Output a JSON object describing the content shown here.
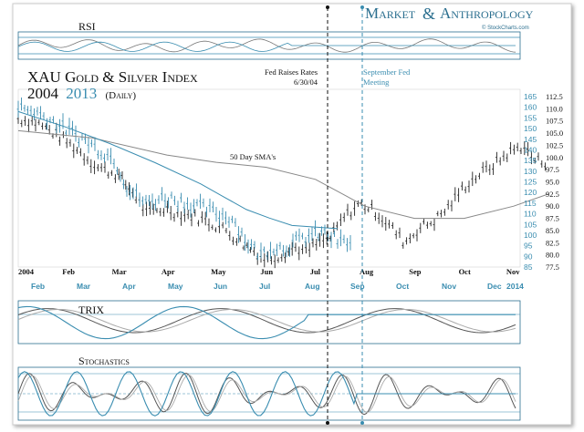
{
  "brand": {
    "part1": "Market",
    "part2": "Anthropology",
    "url": "© StockCharts.com",
    "color": "#2b6f8f"
  },
  "chart_data": {
    "type": "line",
    "title_line1": "XAU Gold & Silver Index",
    "title_year_a": "2004",
    "title_year_b": "2013",
    "title_suffix": "(Daily)",
    "colors": {
      "y2004": "#222222",
      "y2013": "#3a8db0",
      "sma": "#888888"
    },
    "panels": [
      {
        "name": "RSI",
        "type": "oscillator"
      },
      {
        "name": "TRIX",
        "type": "oscillator"
      },
      {
        "name": "Stochastics",
        "type": "oscillator"
      }
    ],
    "annotations": [
      {
        "text_line1": "Fed Raises Rates",
        "text_line2": "6/30/04",
        "color": "#111111"
      },
      {
        "text_line1": "September Fed",
        "text_line2": "Meeting",
        "color": "#3a8db0"
      },
      {
        "text_line1": "50 Day SMA's",
        "text_line2": "",
        "color": "#111111"
      }
    ],
    "x_axis_2004": [
      "2004",
      "Feb",
      "Mar",
      "Apr",
      "May",
      "Jun",
      "Jul",
      "Aug",
      "Sep",
      "Oct",
      "Nov"
    ],
    "x_axis_2013": [
      "Feb",
      "Mar",
      "Apr",
      "May",
      "Jun",
      "Jul",
      "Aug",
      "Sep",
      "Oct",
      "Nov",
      "Dec",
      "2014"
    ],
    "y_axis_2013": {
      "ticks": [
        165,
        160,
        155,
        150,
        145,
        140,
        135,
        130,
        125,
        120,
        115,
        110,
        105,
        100,
        95,
        90,
        85
      ],
      "range": [
        85,
        165
      ]
    },
    "y_axis_2004": {
      "ticks": [
        "112.5",
        "110.0",
        "107.5",
        "105.0",
        "102.5",
        "100.0",
        "97.5",
        "95.0",
        "92.5",
        "90.0",
        "87.5",
        "85.0",
        "82.5",
        "80.0",
        "77.5"
      ],
      "range": [
        77.5,
        112.5
      ]
    },
    "series": [
      {
        "name": "2004",
        "axis": "right_outer",
        "points": [
          [
            0,
            108
          ],
          [
            0.4,
            107
          ],
          [
            0.8,
            104.5
          ],
          [
            1.2,
            101.5
          ],
          [
            1.6,
            98
          ],
          [
            2.0,
            96.5
          ],
          [
            2.3,
            93
          ],
          [
            2.6,
            88.5
          ],
          [
            3.0,
            89.5
          ],
          [
            3.2,
            88.5
          ],
          [
            3.5,
            88
          ],
          [
            3.8,
            87
          ],
          [
            4.2,
            85
          ],
          [
            4.5,
            82.5
          ],
          [
            4.8,
            80.5
          ],
          [
            5.0,
            79
          ],
          [
            5.3,
            80
          ],
          [
            5.6,
            81.5
          ],
          [
            5.8,
            80.5
          ],
          [
            6.0,
            82
          ],
          [
            6.3,
            83.5
          ],
          [
            6.6,
            88
          ],
          [
            6.9,
            90.5
          ],
          [
            7.2,
            89
          ],
          [
            7.5,
            86
          ],
          [
            7.8,
            82.5
          ],
          [
            8.1,
            85.5
          ],
          [
            8.4,
            87
          ],
          [
            8.7,
            90
          ],
          [
            9.0,
            94
          ],
          [
            9.3,
            96.5
          ],
          [
            9.6,
            98.5
          ],
          [
            9.9,
            101
          ],
          [
            10.2,
            102.5
          ],
          [
            10.4,
            99.5
          ],
          [
            10.7,
            99
          ]
        ]
      },
      {
        "name": "2013",
        "axis": "right_inner",
        "points": [
          [
            0,
            160
          ],
          [
            0.4,
            158
          ],
          [
            0.8,
            153
          ],
          [
            1.2,
            148
          ],
          [
            1.5,
            144
          ],
          [
            1.8,
            140
          ],
          [
            2.1,
            136
          ],
          [
            2.4,
            122
          ],
          [
            2.8,
            115
          ],
          [
            3.2,
            118
          ],
          [
            3.6,
            116
          ],
          [
            4.0,
            113
          ],
          [
            4.4,
            110
          ],
          [
            4.7,
            108
          ],
          [
            5.0,
            97
          ],
          [
            5.3,
            91
          ],
          [
            5.6,
            95
          ],
          [
            5.8,
            94
          ],
          [
            6.1,
            97
          ],
          [
            6.4,
            100
          ],
          [
            6.7,
            101
          ],
          [
            7.0,
            97
          ],
          [
            7.3,
            96
          ]
        ]
      },
      {
        "name": "2004 50-day SMA",
        "axis": "right_outer",
        "style": "sma",
        "points": [
          [
            0,
            105.5
          ],
          [
            1.5,
            104
          ],
          [
            3,
            100.5
          ],
          [
            4,
            99
          ],
          [
            5,
            98
          ],
          [
            6,
            95.5
          ],
          [
            7,
            90
          ],
          [
            8,
            87.5
          ],
          [
            9,
            87.5
          ],
          [
            10,
            90
          ],
          [
            10.7,
            92.5
          ]
        ]
      },
      {
        "name": "2013 50-day SMA",
        "axis": "right_inner",
        "style": "sma",
        "points": [
          [
            0,
            158
          ],
          [
            1,
            151
          ],
          [
            2,
            143
          ],
          [
            3,
            134
          ],
          [
            4,
            124
          ],
          [
            4.5,
            118
          ],
          [
            5,
            112
          ],
          [
            5.5,
            108
          ],
          [
            6,
            104.5
          ],
          [
            7,
            103
          ]
        ]
      }
    ]
  }
}
